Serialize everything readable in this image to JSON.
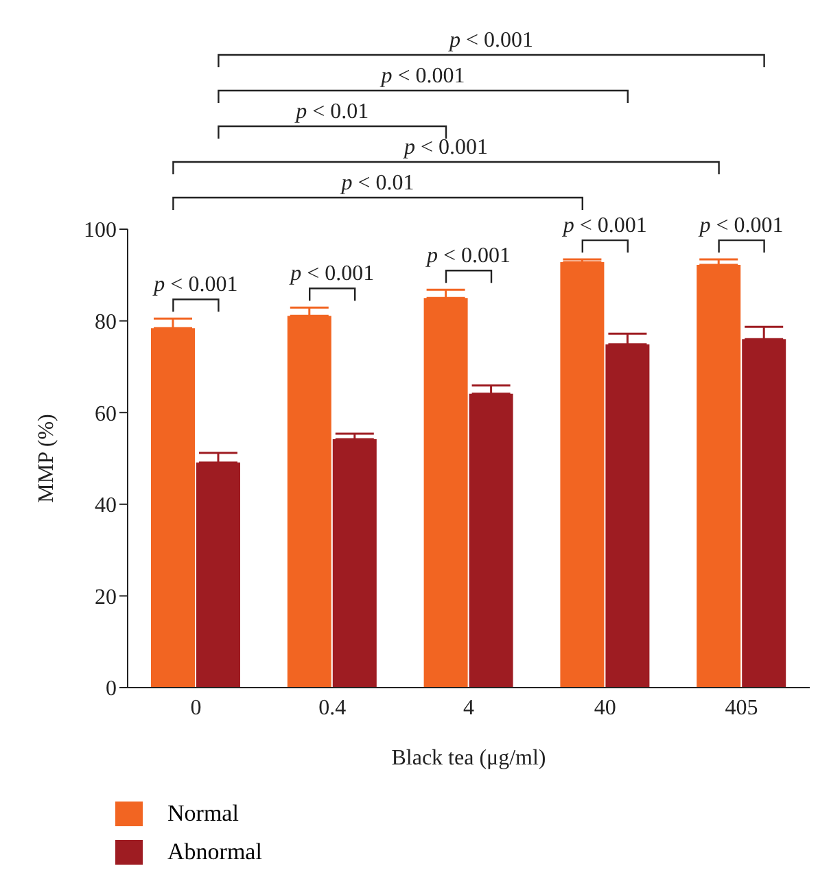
{
  "chart_data": {
    "type": "bar",
    "xlabel": "Black tea (μg/ml)",
    "ylabel": "MMP (%)",
    "categories": [
      "0",
      "0.4",
      "4",
      "40",
      "405"
    ],
    "series": [
      {
        "name": "Normal",
        "color": "#f26522",
        "values": [
          78.4,
          81.1,
          85.0,
          92.8,
          92.2
        ],
        "errors": [
          [
            78.4,
            80.5
          ],
          [
            81.1,
            82.9
          ],
          [
            85.0,
            86.8
          ],
          [
            92.8,
            93.4
          ],
          [
            92.2,
            93.4
          ]
        ]
      },
      {
        "name": "Abnormal",
        "color": "#9e1c22",
        "values": [
          49.1,
          54.2,
          64.1,
          74.9,
          76.0
        ],
        "errors": [
          [
            49.1,
            51.2
          ],
          [
            54.2,
            55.4
          ],
          [
            64.1,
            65.9
          ],
          [
            74.9,
            77.2
          ],
          [
            76.0,
            78.7
          ]
        ]
      }
    ],
    "ylim": [
      0,
      100
    ],
    "yticks": [
      0,
      20,
      40,
      60,
      80,
      100
    ],
    "legend": "bottom left",
    "annotations": [
      "p < 0.001",
      "p < 0.001",
      "p < 0.01",
      "p < 0.001",
      "p < 0.01",
      "p < 0.001",
      "p < 0.001",
      "p < 0.001",
      "p < 0.001",
      "p < 0.001"
    ]
  }
}
